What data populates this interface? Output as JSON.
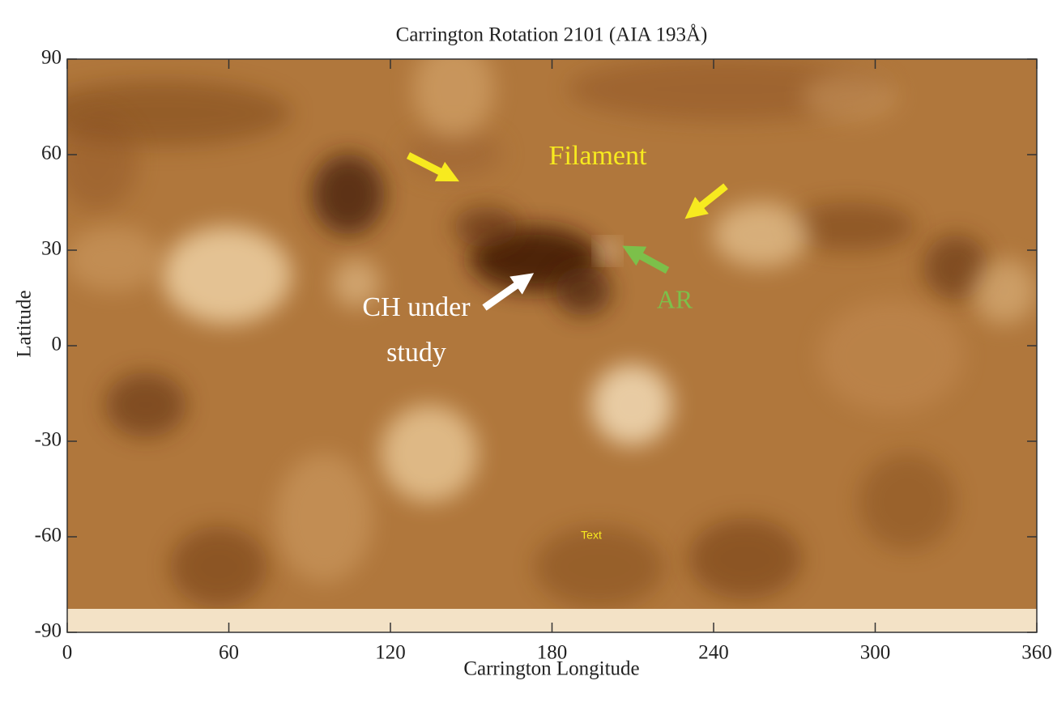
{
  "chart_data": {
    "type": "image",
    "title": "Carrington Rotation 2101 (AIA 193Å)",
    "x_label": "Carrington Longitude",
    "y_label": "Latitude",
    "xlim": [
      0,
      360
    ],
    "xticks": [
      0,
      60,
      120,
      180,
      240,
      300,
      360
    ],
    "ylim": [
      -90,
      90
    ],
    "yticks": [
      -90,
      -60,
      -30,
      0,
      30,
      60,
      90
    ],
    "annotations": [
      {
        "text": "Filament",
        "color": "#f7ea1f"
      },
      {
        "text": "AR",
        "color": "#7cc04a"
      },
      {
        "text": [
          "CH under",
          "study"
        ],
        "color": "#ffffff"
      },
      {
        "text": "Text",
        "color": "#f7ea1f"
      }
    ]
  }
}
